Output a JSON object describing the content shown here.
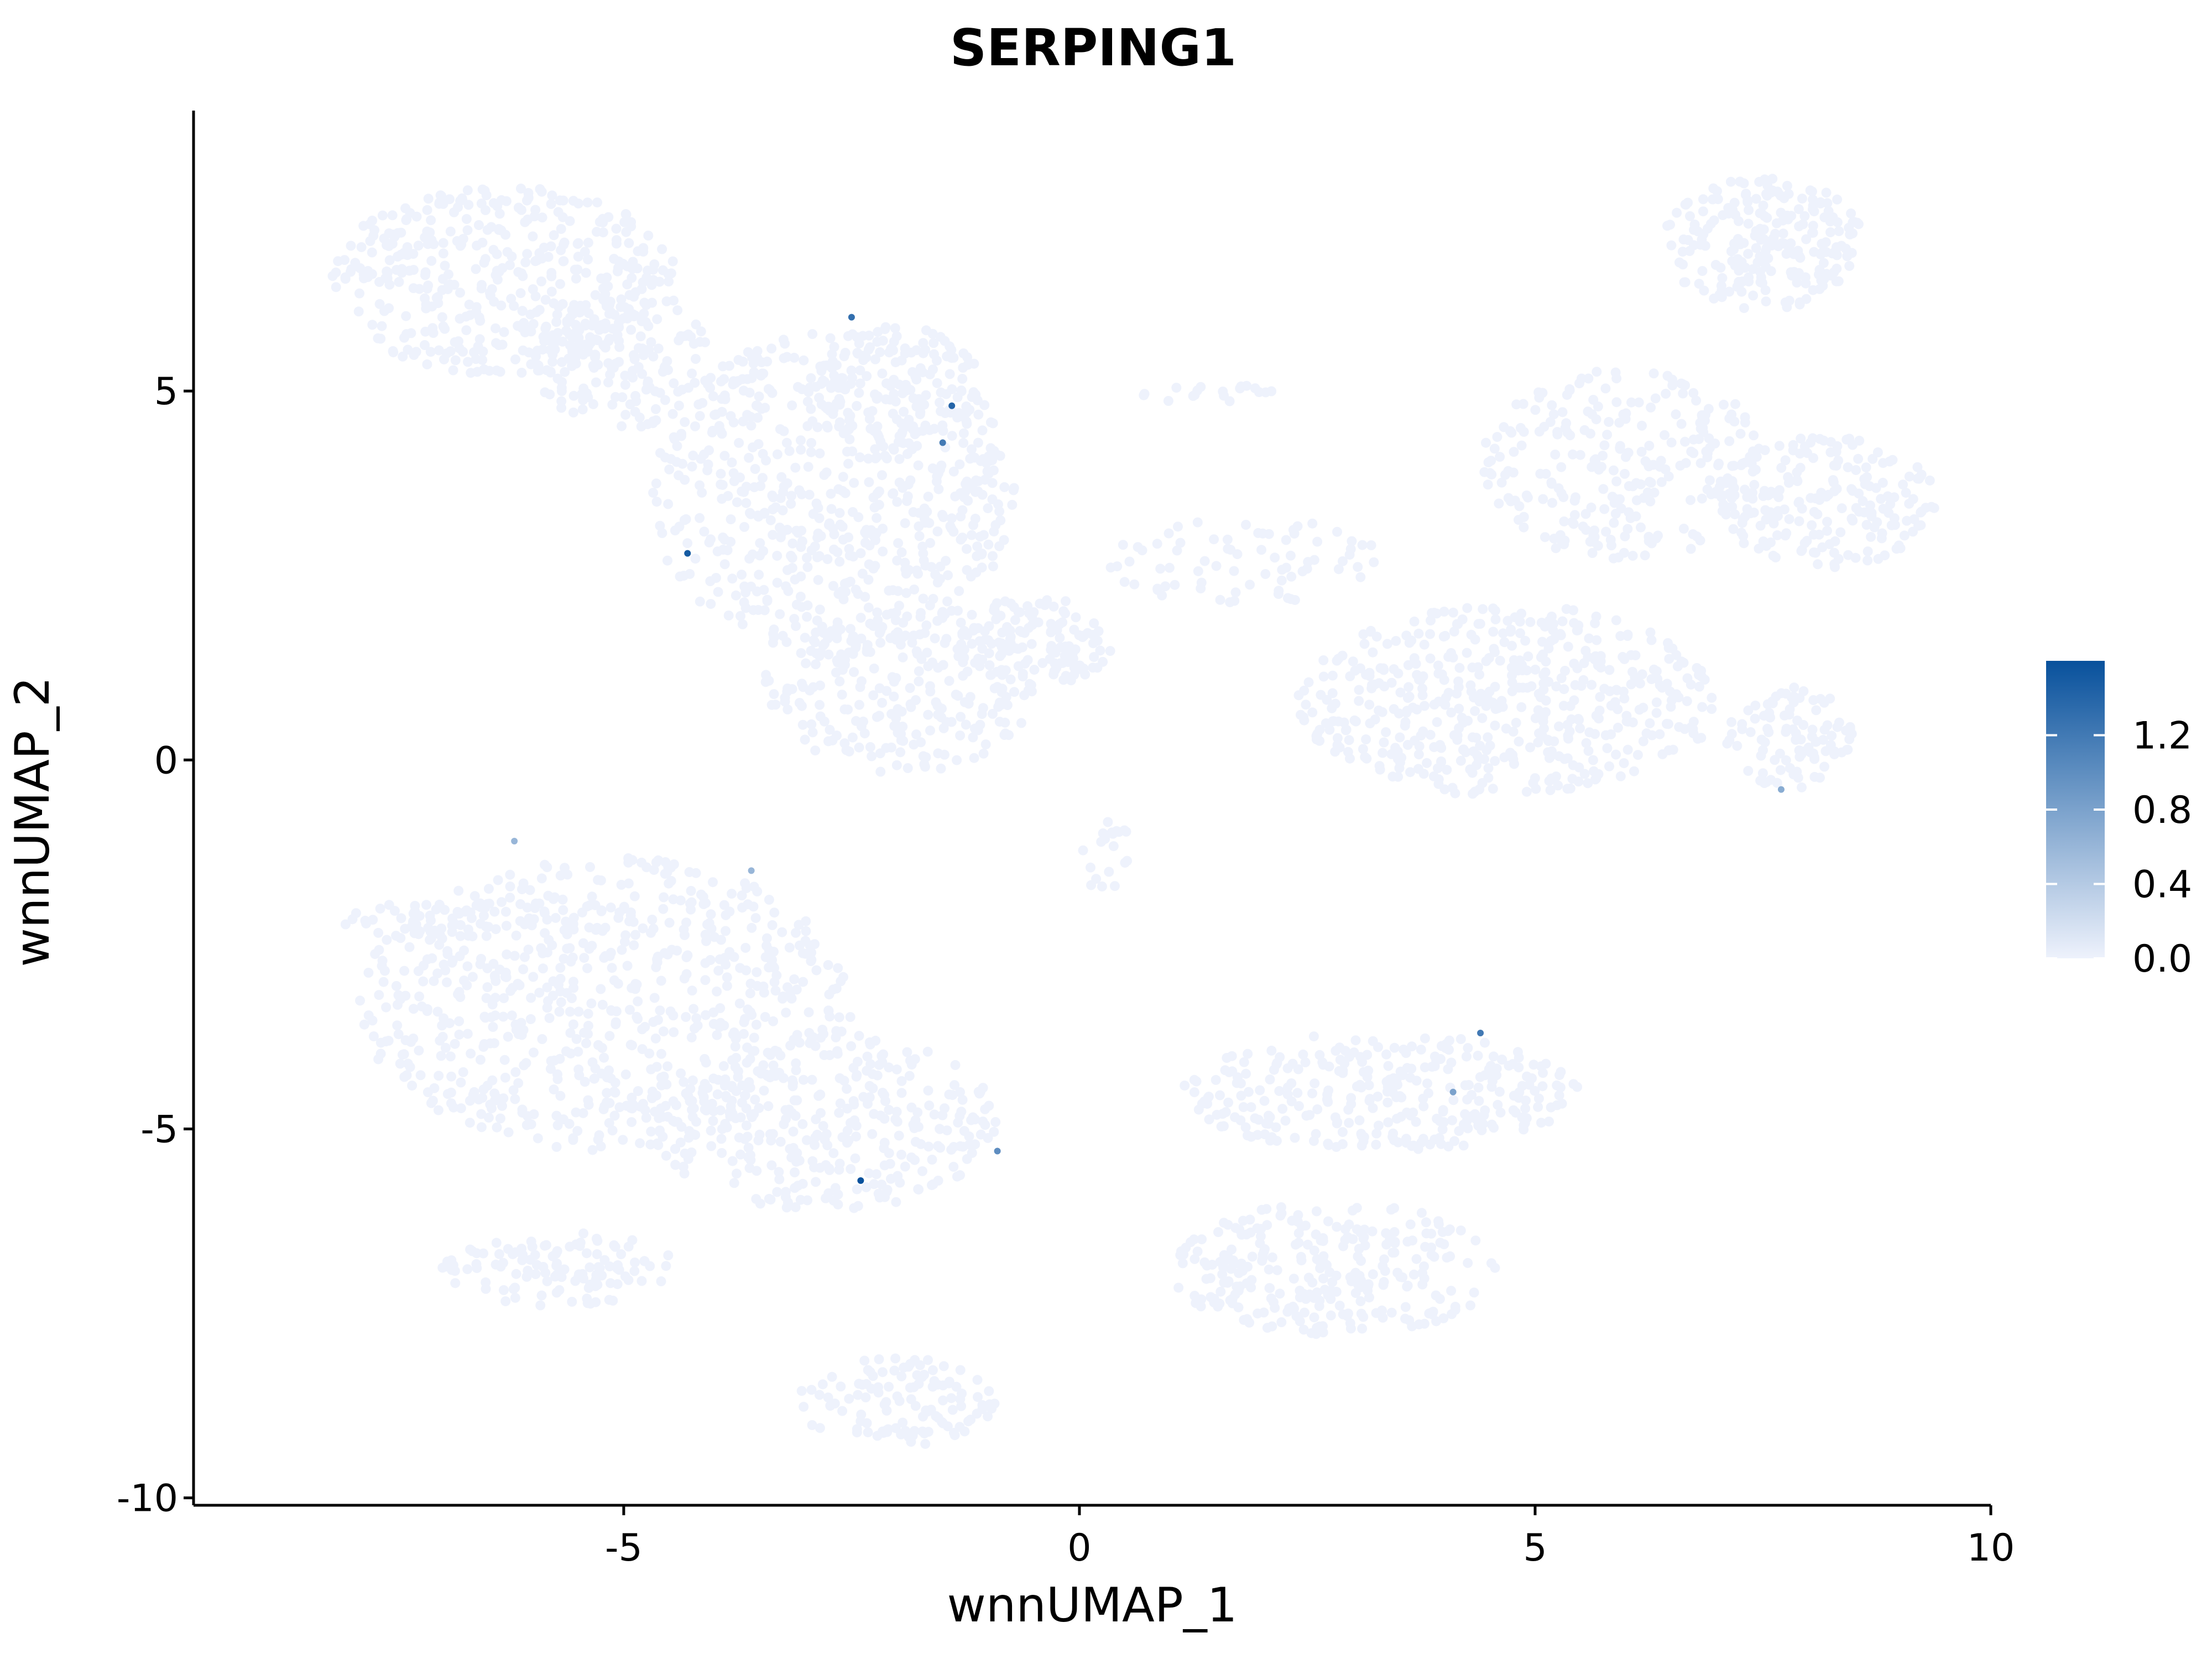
{
  "chart_data": {
    "type": "scatter",
    "title": "SERPING1",
    "xlabel": "wnnUMAP_1",
    "ylabel": "wnnUMAP_2",
    "xlim": [
      -9.72,
      10
    ],
    "ylim": [
      -10.1,
      8.8
    ],
    "x_ticks": [
      -5,
      0,
      5,
      10
    ],
    "x_tick_labels": [
      "-5",
      "0",
      "5",
      "10"
    ],
    "y_ticks": [
      -10,
      -5,
      0,
      5
    ],
    "y_tick_labels": [
      "-10",
      "-5",
      "0",
      "5"
    ],
    "grid": false,
    "legend": {
      "placement": "right",
      "type": "colorbar",
      "min": 0.0,
      "max": 1.6,
      "ticks": [
        0.0,
        0.4,
        0.8,
        1.2
      ],
      "tick_labels": [
        "0.0",
        "0.4",
        "0.8",
        "1.2"
      ],
      "low_color": "#EEF2FC",
      "high_color": "#08519C"
    },
    "background_cells": {
      "expression": 0.0,
      "color": "#EEF2FC",
      "clusters": [
        {
          "name": "cluster-upper-left",
          "cx": -6.3,
          "cy": 6.5,
          "rx": 1.9,
          "ry": 1.3,
          "density": 2600
        },
        {
          "name": "cluster-upper-left-bridge",
          "cx": -5.0,
          "cy": 5.4,
          "rx": 1.0,
          "ry": 0.9,
          "density": 900
        },
        {
          "name": "cluster-upper-mid",
          "cx": -2.7,
          "cy": 3.6,
          "rx": 2.0,
          "ry": 2.2,
          "density": 3800
        },
        {
          "name": "cluster-upper-mid-top",
          "cx": -2.0,
          "cy": 5.1,
          "rx": 0.9,
          "ry": 0.8,
          "density": 700
        },
        {
          "name": "cluster-upper-mid-lower",
          "cx": -2.0,
          "cy": 0.9,
          "rx": 1.5,
          "ry": 1.1,
          "density": 1300
        },
        {
          "name": "cluster-mid-hub",
          "cx": -0.5,
          "cy": 1.6,
          "rx": 0.9,
          "ry": 0.6,
          "density": 800
        },
        {
          "name": "cluster-mid-small",
          "cx": 0.3,
          "cy": -1.3,
          "rx": 0.3,
          "ry": 0.5,
          "density": 120
        },
        {
          "name": "cluster-mid-streak",
          "cx": 1.3,
          "cy": 5.0,
          "rx": 0.9,
          "ry": 0.15,
          "density": 110
        },
        {
          "name": "cluster-bridge-right",
          "cx": 1.8,
          "cy": 2.7,
          "rx": 1.5,
          "ry": 0.6,
          "density": 450
        },
        {
          "name": "cluster-right-mid",
          "cx": 4.7,
          "cy": 0.8,
          "rx": 2.3,
          "ry": 1.3,
          "density": 3000
        },
        {
          "name": "cluster-right-upper",
          "cx": 6.0,
          "cy": 4.0,
          "rx": 1.6,
          "ry": 1.3,
          "density": 1600
        },
        {
          "name": "cluster-right-top",
          "cx": 7.5,
          "cy": 7.0,
          "rx": 1.1,
          "ry": 0.9,
          "density": 1400
        },
        {
          "name": "cluster-right-far",
          "cx": 8.2,
          "cy": 3.5,
          "rx": 1.2,
          "ry": 0.9,
          "density": 1200
        },
        {
          "name": "cluster-right-small",
          "cx": 7.8,
          "cy": 0.3,
          "rx": 0.7,
          "ry": 0.7,
          "density": 600
        },
        {
          "name": "cluster-lower-left",
          "cx": -5.2,
          "cy": -3.3,
          "rx": 2.7,
          "ry": 2.0,
          "density": 4200
        },
        {
          "name": "cluster-lower-left-tail",
          "cx": -7.3,
          "cy": -2.2,
          "rx": 0.9,
          "ry": 0.25,
          "density": 200
        },
        {
          "name": "cluster-lower-mid",
          "cx": -2.8,
          "cy": -4.9,
          "rx": 1.9,
          "ry": 1.2,
          "density": 2000
        },
        {
          "name": "cluster-lower-left-bottom",
          "cx": -5.7,
          "cy": -6.9,
          "rx": 1.3,
          "ry": 0.5,
          "density": 700
        },
        {
          "name": "cluster-bottom",
          "cx": -2.0,
          "cy": -8.7,
          "rx": 1.1,
          "ry": 0.6,
          "density": 700
        },
        {
          "name": "cluster-lower-right",
          "cx": 3.3,
          "cy": -4.5,
          "rx": 2.2,
          "ry": 0.8,
          "density": 1800
        },
        {
          "name": "cluster-lower-right-bottom",
          "cx": 2.8,
          "cy": -6.9,
          "rx": 1.8,
          "ry": 0.9,
          "density": 1700
        }
      ]
    },
    "series": [
      {
        "type": "expressing_cells",
        "points": [
          {
            "x": -2.5,
            "y": 6.0,
            "value": 1.3
          },
          {
            "x": -1.4,
            "y": 4.8,
            "value": 1.4
          },
          {
            "x": -1.5,
            "y": 4.3,
            "value": 1.2
          },
          {
            "x": -4.3,
            "y": 2.8,
            "value": 1.5
          },
          {
            "x": -6.2,
            "y": -1.1,
            "value": 0.6
          },
          {
            "x": -3.6,
            "y": -1.5,
            "value": 0.6
          },
          {
            "x": 7.7,
            "y": -0.4,
            "value": 0.7
          },
          {
            "x": 4.4,
            "y": -3.7,
            "value": 1.2
          },
          {
            "x": 4.1,
            "y": -4.5,
            "value": 0.8
          },
          {
            "x": -0.9,
            "y": -5.3,
            "value": 1.0
          },
          {
            "x": -2.4,
            "y": -5.7,
            "value": 1.6
          }
        ]
      }
    ]
  }
}
